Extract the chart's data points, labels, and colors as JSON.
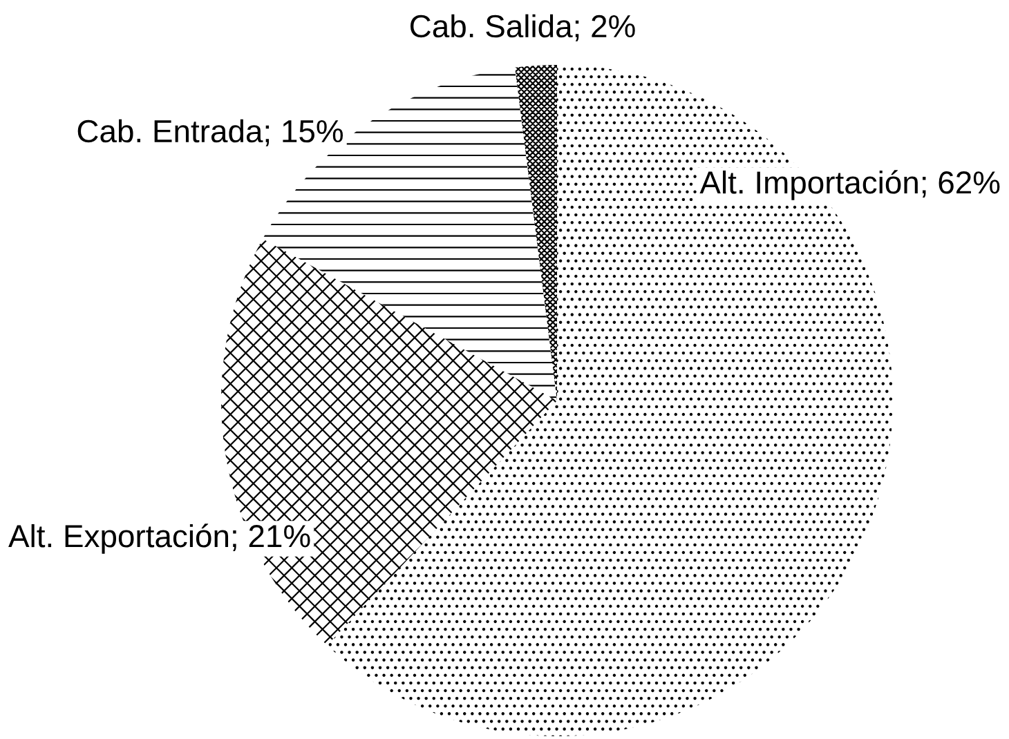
{
  "chart_data": {
    "type": "pie",
    "categories": [
      "Alt. Importación",
      "Alt. Exportación",
      "Cab. Entrada",
      "Cab. Salida"
    ],
    "values": [
      62,
      21,
      15,
      2
    ],
    "value_labels": [
      "62%",
      "21%",
      "15%",
      "2%"
    ],
    "colors": [
      "#000000",
      "#000000",
      "#000000",
      "#000000"
    ]
  }
}
